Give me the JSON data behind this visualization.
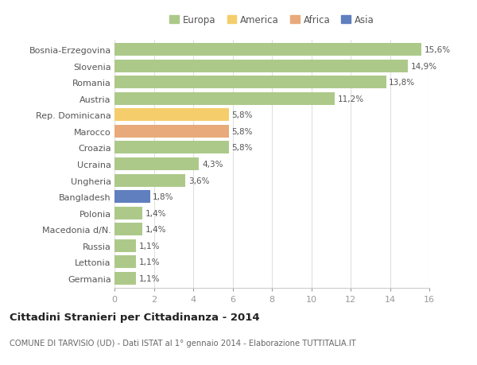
{
  "categories": [
    "Bosnia-Erzegovina",
    "Slovenia",
    "Romania",
    "Austria",
    "Rep. Dominicana",
    "Marocco",
    "Croazia",
    "Ucraina",
    "Ungheria",
    "Bangladesh",
    "Polonia",
    "Macedonia d/N.",
    "Russia",
    "Lettonia",
    "Germania"
  ],
  "values": [
    15.6,
    14.9,
    13.8,
    11.2,
    5.8,
    5.8,
    5.8,
    4.3,
    3.6,
    1.8,
    1.4,
    1.4,
    1.1,
    1.1,
    1.1
  ],
  "labels": [
    "15,6%",
    "14,9%",
    "13,8%",
    "11,2%",
    "5,8%",
    "5,8%",
    "5,8%",
    "4,3%",
    "3,6%",
    "1,8%",
    "1,4%",
    "1,4%",
    "1,1%",
    "1,1%",
    "1,1%"
  ],
  "colors": [
    "#adc98a",
    "#adc98a",
    "#adc98a",
    "#adc98a",
    "#f5cd6a",
    "#e8aa7a",
    "#adc98a",
    "#adc98a",
    "#adc98a",
    "#5f7fbf",
    "#adc98a",
    "#adc98a",
    "#adc98a",
    "#adc98a",
    "#adc98a"
  ],
  "legend": [
    {
      "label": "Europa",
      "color": "#adc98a"
    },
    {
      "label": "America",
      "color": "#f5cd6a"
    },
    {
      "label": "Africa",
      "color": "#e8aa7a"
    },
    {
      "label": "Asia",
      "color": "#5f7fbf"
    }
  ],
  "title": "Cittadini Stranieri per Cittadinanza - 2014",
  "subtitle": "COMUNE DI TARVISIO (UD) - Dati ISTAT al 1° gennaio 2014 - Elaborazione TUTTITALIA.IT",
  "xlim": [
    0,
    16
  ],
  "xticks": [
    0,
    2,
    4,
    6,
    8,
    10,
    12,
    14,
    16
  ],
  "background_color": "#ffffff",
  "grid_color": "#e0e0e0",
  "bar_height": 0.78
}
